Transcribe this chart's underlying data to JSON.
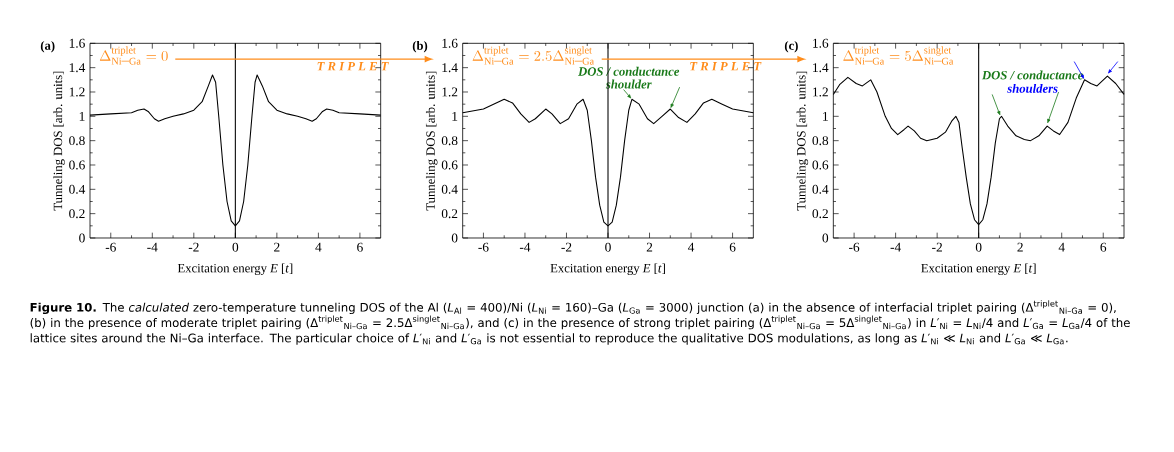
{
  "chart_data": [
    {
      "type": "line",
      "title": "(a)",
      "xlabel": "Excitation energy *E* [*t*]",
      "ylabel": "Tunneling DOS [arb. units]",
      "xlim": [
        -7,
        7
      ],
      "ylim": [
        0,
        1.6
      ],
      "xticks": [
        -6,
        -4,
        -2,
        0,
        2,
        4,
        6
      ],
      "yticks": [
        0,
        0.2,
        0.4,
        0.6,
        0.8,
        1,
        1.2,
        1.4,
        1.6
      ],
      "x": [
        -7,
        -6,
        -5,
        -4.7,
        -4.4,
        -4.2,
        -3.9,
        -3.7,
        -3.4,
        -3,
        -2.5,
        -2,
        -1.6,
        -1.3,
        -1.1,
        -0.95,
        -0.8,
        -0.6,
        -0.4,
        -0.2,
        0,
        0.2,
        0.4,
        0.6,
        0.8,
        0.95,
        1.05,
        1.3,
        1.6,
        2,
        2.5,
        3,
        3.4,
        3.7,
        3.9,
        4.2,
        4.4,
        4.7,
        5,
        6,
        7
      ],
      "series": [
        {
          "color": "#000000",
          "values": [
            1.01,
            1.02,
            1.03,
            1.05,
            1.06,
            1.04,
            0.98,
            0.96,
            0.98,
            1.0,
            1.02,
            1.05,
            1.12,
            1.25,
            1.34,
            1.28,
            1.0,
            0.6,
            0.3,
            0.14,
            0.1,
            0.14,
            0.3,
            0.6,
            1.0,
            1.28,
            1.34,
            1.25,
            1.12,
            1.05,
            1.02,
            1.0,
            0.98,
            0.96,
            0.98,
            1.04,
            1.06,
            1.05,
            1.03,
            1.02,
            1.01
          ]
        }
      ],
      "ref_lines": [
        {
          "axis": "x",
          "value": 0,
          "color": "#000000"
        },
        {
          "axis": "y",
          "value": 1.47,
          "label": "T R I P L E T",
          "color": "#ff8c1a"
        }
      ],
      "annotations": [
        "\\Delta^{\\mathrm{triplet}}_{\\mathrm{Ni\\mbox{–}Ga}} = 0",
        "**Figure 10.** The *calculated* zero-temperature tunneling DOS of the Al (*L*$_{Al}$ = 400)/Ni (*L*$_{Ni}$ = 160)–Ga (*L*$_{Ga}$ = 3000) junction (a) in the absence of interfacial triplet pairing (Δ$^{triplet}$$_{Ni–Ga}$ = 0), (b) in the presence of moderate triplet pairing (Δ$^{triplet}$$_{Ni–Ga}$ = 2.5Δ$^{singlet}$$_{Ni–Ga}$), and (c) in the presence of strong triplet pairing (Δ$^{triplet}$$_{Ni–Ga}$ = 5Δ$^{singlet}$$_{Ni–Ga}$) in *L*′$_{Ni}$ = *L*$_{Ni}$/4 and *L*′$_{Ga}$ = *L*$_{Ga}$/4 of the lattice sites around the Ni–Ga interface. The particular choice of *L*′$_{Ni}$ and *L*′$_{Ga}$ is not essential to reproduce the qualitative DOS modulations, as long as *L*′$_{Ni}$ ≪ *L*$_{Ni}$ and *L*′$_{Ga}$ ≪ *L*$_{Ga}$."
      ]
    },
    {
      "type": "line",
      "title": "(b)",
      "xlabel": "Excitation energy *E* [*t*]",
      "ylabel": "Tunneling DOS [arb. units]",
      "xlim": [
        -7,
        7
      ],
      "ylim": [
        0,
        1.6
      ],
      "xticks": [
        -6,
        -4,
        -2,
        0,
        2,
        4,
        6
      ],
      "yticks": [
        0,
        0.2,
        0.4,
        0.6,
        0.8,
        1,
        1.2,
        1.4,
        1.6
      ],
      "x": [
        -7,
        -6,
        -5.5,
        -5,
        -4.6,
        -4.2,
        -3.8,
        -3.5,
        -3,
        -2.7,
        -2.3,
        -1.9,
        -1.5,
        -1.2,
        -1.0,
        -0.8,
        -0.6,
        -0.4,
        -0.2,
        0,
        0.2,
        0.4,
        0.6,
        0.8,
        1.0,
        1.15,
        1.5,
        1.9,
        2.2,
        2.6,
        3.0,
        3.4,
        3.8,
        4.2,
        4.6,
        5.0,
        5.5,
        6,
        7
      ],
      "series": [
        {
          "color": "#000000",
          "values": [
            1.03,
            1.06,
            1.1,
            1.14,
            1.11,
            1.02,
            0.95,
            0.98,
            1.06,
            1.02,
            0.94,
            0.98,
            1.1,
            1.14,
            1.05,
            0.8,
            0.5,
            0.27,
            0.13,
            0.1,
            0.13,
            0.27,
            0.5,
            0.8,
            1.05,
            1.14,
            1.1,
            0.98,
            0.94,
            1.0,
            1.06,
            0.99,
            0.95,
            1.02,
            1.11,
            1.14,
            1.1,
            1.06,
            1.03
          ]
        }
      ],
      "ref_lines": [
        {
          "axis": "x",
          "value": 0,
          "color": "#000000"
        },
        {
          "axis": "y",
          "value": 1.47,
          "label": "T R I P L E T",
          "color": "#ff8c1a"
        }
      ],
      "annotations": [
        "\\Delta^{\\mathrm{triplet}}_{\\mathrm{Ni\\mbox{–}Ga}} = 2.5\\Delta^{\\mathrm{singlet}}_{\\mathrm{Ni\\mbox{–}Ga}}",
        {
          "text": "DOS / conductance",
          "x": 3.0,
          "y": 1.06
        },
        {
          "text": "shoulder",
          "x": 1.15,
          "y": 1.14
        }
      ]
    },
    {
      "type": "line",
      "title": "(c)",
      "xlabel": "Excitation energy *E* [*t*]",
      "ylabel": "Tunneling DOS [arb. units]",
      "xlim": [
        -7,
        7
      ],
      "ylim": [
        0,
        1.6
      ],
      "xticks": [
        -6,
        -4,
        -2,
        0,
        2,
        4,
        6
      ],
      "yticks": [
        0,
        0.2,
        0.4,
        0.6,
        0.8,
        1,
        1.2,
        1.4,
        1.6
      ],
      "x": [
        -7,
        -6.7,
        -6.3,
        -5.9,
        -5.6,
        -5.2,
        -4.9,
        -4.5,
        -4.2,
        -3.9,
        -3.6,
        -3.4,
        -3.1,
        -2.8,
        -2.5,
        -2,
        -1.6,
        -1.3,
        -1.1,
        -0.95,
        -0.8,
        -0.6,
        -0.4,
        -0.2,
        0,
        0.2,
        0.4,
        0.6,
        0.8,
        1.0,
        1.1,
        1.4,
        1.8,
        2.2,
        2.5,
        2.9,
        3.3,
        3.6,
        3.9,
        4.3,
        4.7,
        5.1,
        5.4,
        5.7,
        6.2,
        6.6,
        7
      ],
      "series": [
        {
          "color": "#000000",
          "values": [
            1.18,
            1.26,
            1.32,
            1.27,
            1.25,
            1.3,
            1.2,
            1.0,
            0.9,
            0.85,
            0.89,
            0.92,
            0.88,
            0.82,
            0.8,
            0.82,
            0.87,
            0.96,
            1.0,
            0.95,
            0.75,
            0.5,
            0.28,
            0.15,
            0.11,
            0.15,
            0.28,
            0.5,
            0.78,
            0.98,
            1.0,
            0.92,
            0.84,
            0.81,
            0.8,
            0.84,
            0.92,
            0.88,
            0.85,
            0.95,
            1.15,
            1.3,
            1.27,
            1.25,
            1.33,
            1.27,
            1.18
          ]
        }
      ],
      "ref_lines": [
        {
          "axis": "x",
          "value": 0,
          "color": "#000000"
        }
      ],
      "annotations": [
        "\\Delta^{\\mathrm{triplet}}_{\\mathrm{Ni\\mbox{–}Ga}} = 5\\Delta^{\\mathrm{singlet}}_{\\mathrm{Ni\\mbox{–}Ga}}",
        {
          "text": "DOS / conductance",
          "x": 1.05,
          "y": 1.0
        },
        {
          "text": "shoulders",
          "x": 5.1,
          "y": 1.3
        }
      ]
    }
  ]
}
